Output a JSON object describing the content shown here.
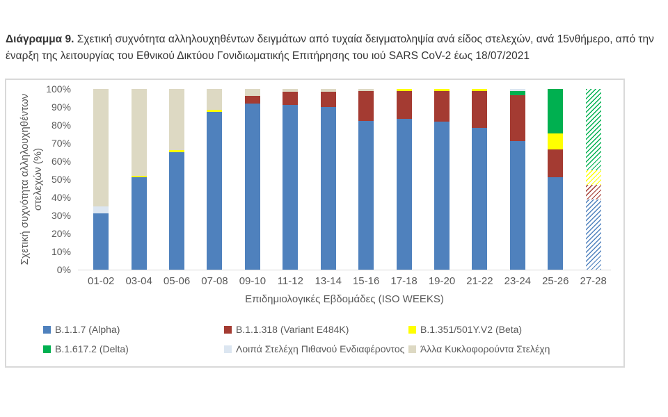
{
  "caption": {
    "label": "Διάγραμμα 9.",
    "line1": "Σχετική συχνότητα αλληλουχηθέντων δειγμάτων από τυχαία δειγματοληψία ανά είδος στελεχών, ανά 15νθήμερο, από την",
    "line2": "έναρξη της λειτουργίας του Εθνικού Δικτύου Γονιδιωματικής Επιτήρησης του ιού SARS CoV-2 έως 18/07/2021"
  },
  "chart_data": {
    "type": "bar",
    "stacked": true,
    "percent_stacked": true,
    "grid": false,
    "legend_position": "bottom",
    "title": "",
    "xlabel": "Επιδημιολογικές Εβδομάδες (ISO WEEKS)",
    "ylabel": "Σχετική συχνότητα αλληλουχηθέντων στελεχών (%)",
    "ylim": [
      0,
      100
    ],
    "yticks": [
      "100%",
      "90%",
      "80%",
      "70%",
      "60%",
      "50%",
      "40%",
      "30%",
      "20%",
      "10%",
      "0%"
    ],
    "categories": [
      "01-02",
      "03-04",
      "05-06",
      "07-08",
      "09-10",
      "11-12",
      "13-14",
      "15-16",
      "17-18",
      "19-20",
      "21-22",
      "23-24",
      "25-26",
      "27-28"
    ],
    "series": [
      {
        "name": "B.1.1.7 (Alpha)",
        "color": "#4F81BD",
        "values": [
          31,
          51,
          65,
          87.5,
          92,
          91,
          90,
          82.5,
          83.5,
          82,
          78.5,
          71,
          51,
          39
        ]
      },
      {
        "name": "B.1.1.318 (Variant E484K)",
        "color": "#A43B32",
        "values": [
          0,
          0,
          0,
          0,
          4,
          7.5,
          8.5,
          16.5,
          15.5,
          17,
          20.5,
          25.5,
          15.5,
          8
        ]
      },
      {
        "name": "B.1.351/501Y.V2 (Beta)",
        "color": "#FFFF00",
        "values": [
          0,
          1,
          1,
          1,
          0,
          0,
          0,
          0,
          1,
          1,
          1,
          0,
          9,
          8
        ]
      },
      {
        "name": "B.1.617.2 (Delta)",
        "color": "#00B050",
        "values": [
          0,
          0,
          0,
          0,
          0,
          0,
          0,
          0,
          0,
          0,
          0,
          2.5,
          24.5,
          45
        ]
      },
      {
        "name": "Λοιπά Στελέχη Πιθανού Ενδιαφέροντος",
        "color": "#DCE6F1",
        "values": [
          4,
          0,
          0,
          0,
          0,
          0,
          0,
          0,
          0,
          0,
          0,
          1,
          0,
          0
        ]
      },
      {
        "name": "Άλλα Κυκλοφορούντα Στελέχη",
        "color": "#DDD9C3",
        "values": [
          65,
          48,
          34,
          11.5,
          4,
          1.5,
          1.5,
          1,
          0,
          0,
          0,
          0,
          0,
          0
        ]
      }
    ],
    "hatched_categories": [
      "27-28"
    ]
  }
}
